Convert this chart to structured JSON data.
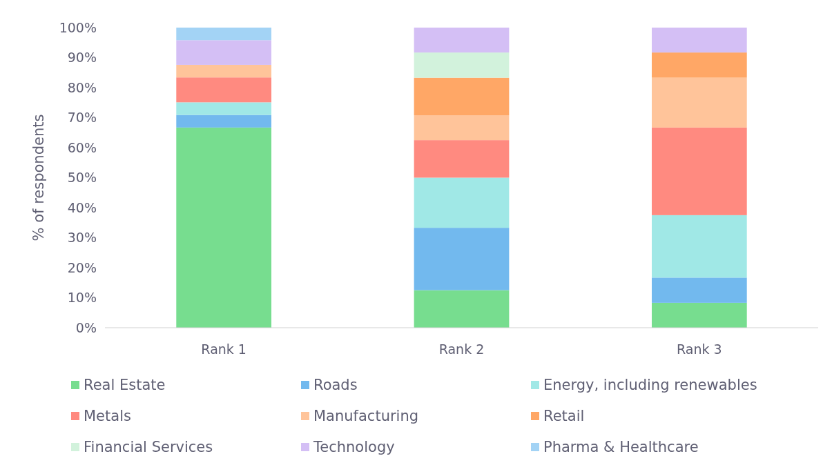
{
  "chart_data": {
    "type": "bar",
    "stacked": true,
    "ylabel": "% of respondents",
    "categories": [
      "Rank 1",
      "Rank 2",
      "Rank 3"
    ],
    "ylim": [
      0,
      100
    ],
    "yticks": [
      {
        "value": 0,
        "label": "0%"
      },
      {
        "value": 10,
        "label": "10%"
      },
      {
        "value": 20,
        "label": "20%"
      },
      {
        "value": 30,
        "label": "30%"
      },
      {
        "value": 40,
        "label": "40%"
      },
      {
        "value": 50,
        "label": "50%"
      },
      {
        "value": 60,
        "label": "60%"
      },
      {
        "value": 70,
        "label": "70%"
      },
      {
        "value": 80,
        "label": "80%"
      },
      {
        "value": 90,
        "label": "90%"
      },
      {
        "value": 100,
        "label": "100%"
      }
    ],
    "grid": false,
    "legend": "bottom",
    "series": [
      {
        "name": "Real Estate",
        "color": "#77dd8f",
        "values": [
          66.7,
          12.5,
          8.3
        ]
      },
      {
        "name": "Roads",
        "color": "#72b9ee",
        "values": [
          4.2,
          20.8,
          8.4
        ]
      },
      {
        "name": "Energy, including renewables",
        "color": "#a0e8e6",
        "values": [
          4.2,
          16.7,
          20.8
        ]
      },
      {
        "name": "Metals",
        "color": "#ff8a80",
        "values": [
          8.3,
          12.5,
          29.2
        ]
      },
      {
        "name": "Manufacturing",
        "color": "#ffc49a",
        "values": [
          4.2,
          8.3,
          16.6
        ]
      },
      {
        "name": "Retail",
        "color": "#ffa766",
        "values": [
          0,
          12.5,
          8.4
        ]
      },
      {
        "name": "Financial Services",
        "color": "#d2f2dc",
        "values": [
          0,
          8.4,
          0
        ]
      },
      {
        "name": "Technology",
        "color": "#d4bff5",
        "values": [
          8.2,
          8.3,
          8.3
        ]
      },
      {
        "name": "Pharma & Healthcare",
        "color": "#a3d3f5",
        "values": [
          4.2,
          0,
          0
        ]
      }
    ]
  }
}
